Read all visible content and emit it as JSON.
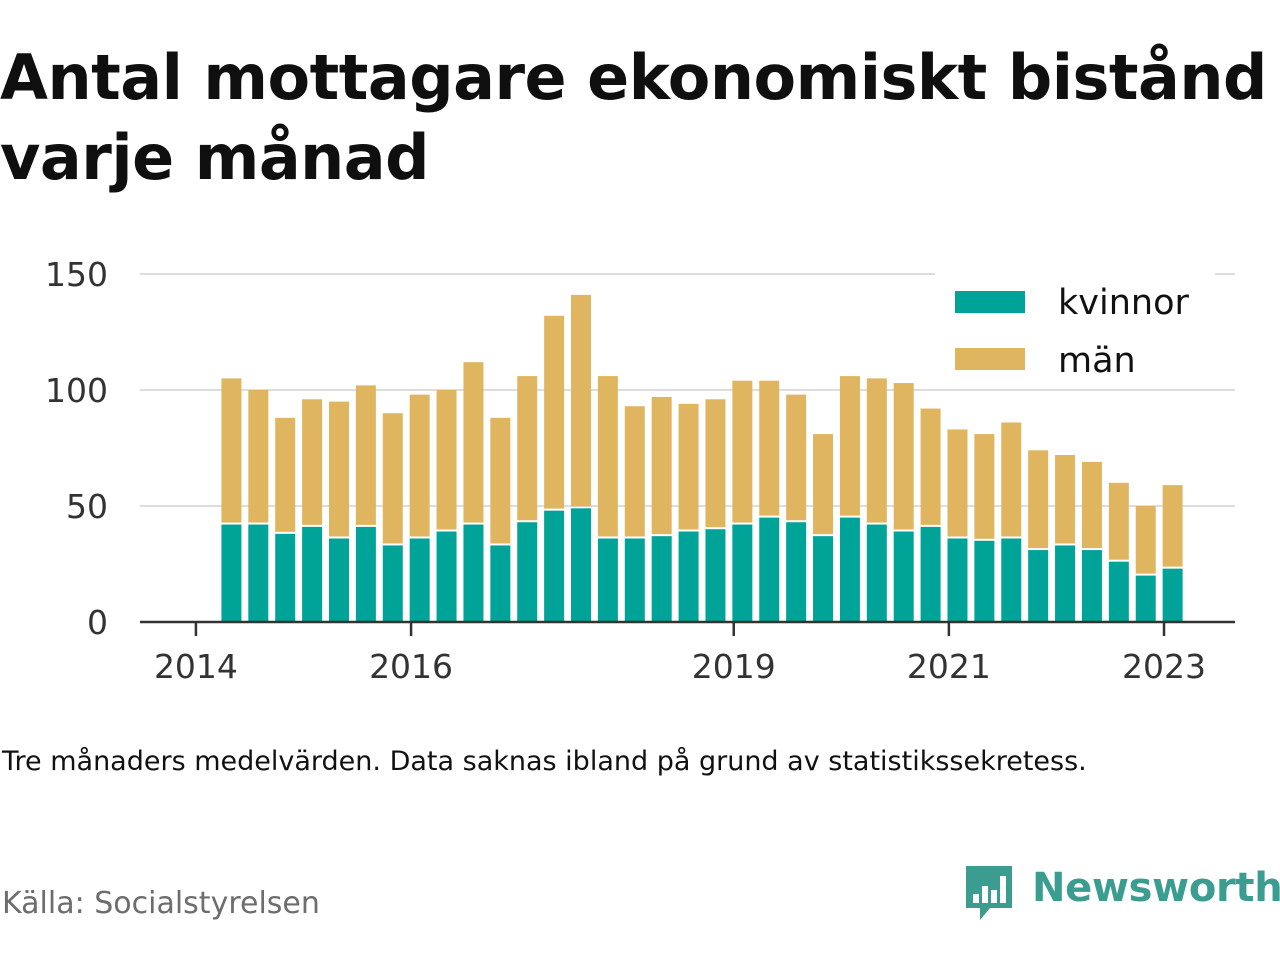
{
  "title": "Antal mottagare ekonomiskt bistånd varje månad",
  "note": "Tre månaders medelvärden. Data saknas ibland på grund av statistikssekretess.",
  "source": "Källa: Socialstyrelsen",
  "brand": "Newsworthy",
  "colors": {
    "kvinnor": "#00a398",
    "man": "#e0b55f",
    "grid": "#dddddd",
    "axis": "#333333"
  },
  "chart_data": {
    "type": "bar",
    "stacked": true,
    "ylim": [
      0,
      150
    ],
    "yticks": [
      0,
      50,
      100,
      150
    ],
    "x_tick_labels": [
      {
        "label": "2014",
        "year": 2014.0
      },
      {
        "label": "2016",
        "year": 2016.0
      },
      {
        "label": "2019",
        "year": 2019.0
      },
      {
        "label": "2021",
        "year": 2021.0
      },
      {
        "label": "2023",
        "year": 2023.0
      }
    ],
    "x_range": [
      2013.48,
      2023.66
    ],
    "bar_periods": [
      2014.33,
      2014.58,
      2014.83,
      2015.08,
      2015.33,
      2015.58,
      2015.83,
      2016.08,
      2016.33,
      2016.58,
      2016.83,
      2017.08,
      2017.33,
      2017.58,
      2017.83,
      2018.08,
      2018.33,
      2018.58,
      2018.83,
      2019.08,
      2019.33,
      2019.58,
      2019.83,
      2020.08,
      2020.33,
      2020.58,
      2020.83,
      2021.08,
      2021.33,
      2021.58,
      2021.83,
      2022.08,
      2022.33,
      2022.58,
      2022.83,
      2023.08
    ],
    "legend_position": "top-right",
    "series": [
      {
        "name": "kvinnor",
        "values": [
          42,
          42,
          38,
          41,
          36,
          41,
          33,
          36,
          39,
          42,
          33,
          43,
          48,
          49,
          36,
          36,
          37,
          39,
          40,
          42,
          45,
          43,
          37,
          45,
          42,
          39,
          41,
          36,
          35,
          36,
          31,
          33,
          31,
          26,
          20,
          23
        ]
      },
      {
        "name": "män",
        "values": [
          63,
          58,
          50,
          55,
          59,
          61,
          57,
          62,
          61,
          70,
          55,
          63,
          84,
          92,
          70,
          57,
          60,
          55,
          56,
          62,
          59,
          55,
          44,
          61,
          63,
          64,
          51,
          47,
          46,
          50,
          43,
          39,
          38,
          34,
          30,
          36
        ]
      }
    ]
  }
}
